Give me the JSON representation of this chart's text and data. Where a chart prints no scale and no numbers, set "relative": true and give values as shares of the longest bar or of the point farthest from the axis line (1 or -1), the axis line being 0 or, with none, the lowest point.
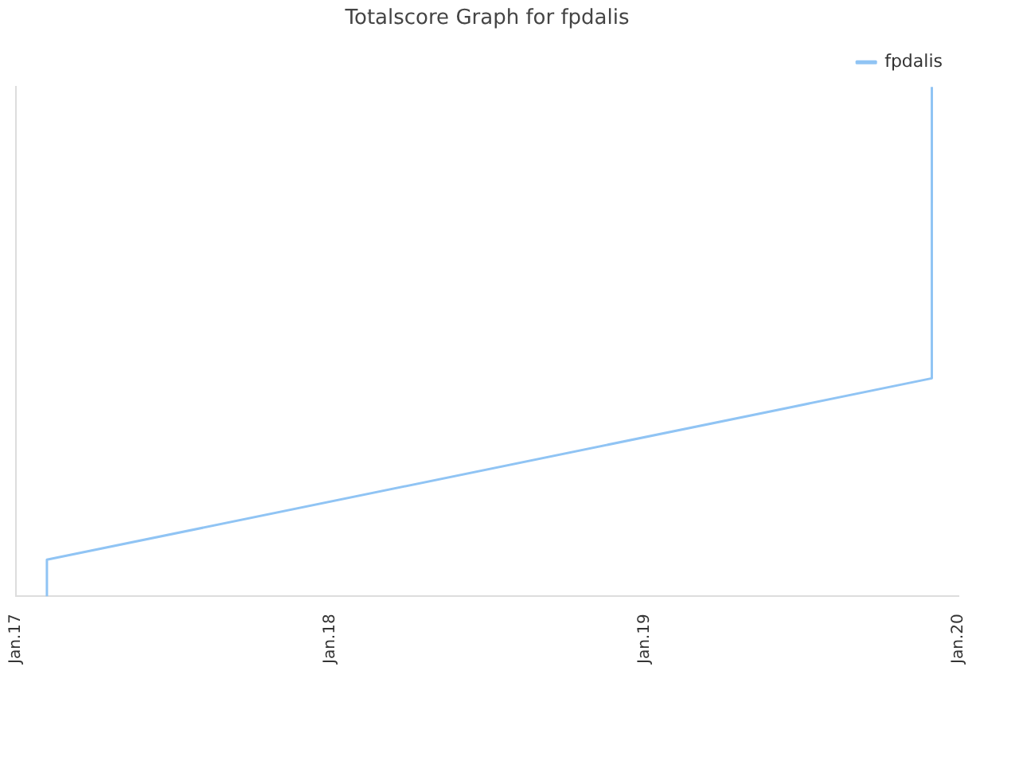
{
  "chart_data": {
    "type": "line",
    "title": "Totalscore Graph for fpdalis",
    "relative": true,
    "series": [
      {
        "name": "fpdalis",
        "color": "#90c4f4",
        "x": [
          "2017-02-06",
          "2017-02-06",
          "2019-12-01",
          "2019-12-01"
        ],
        "values": [
          0,
          0.072,
          0.428,
          1
        ]
      }
    ],
    "xlim": [
      "2017-01-01",
      "2020-01-01"
    ],
    "xticks": [
      {
        "value": "2017-01-01",
        "label": "Jan.17"
      },
      {
        "value": "2018-01-01",
        "label": "Jan.18"
      },
      {
        "value": "2019-01-01",
        "label": "Jan.19"
      },
      {
        "value": "2020-01-01",
        "label": "Jan.20"
      }
    ],
    "legend": "top right",
    "marker": "none",
    "line_style": "solid"
  }
}
